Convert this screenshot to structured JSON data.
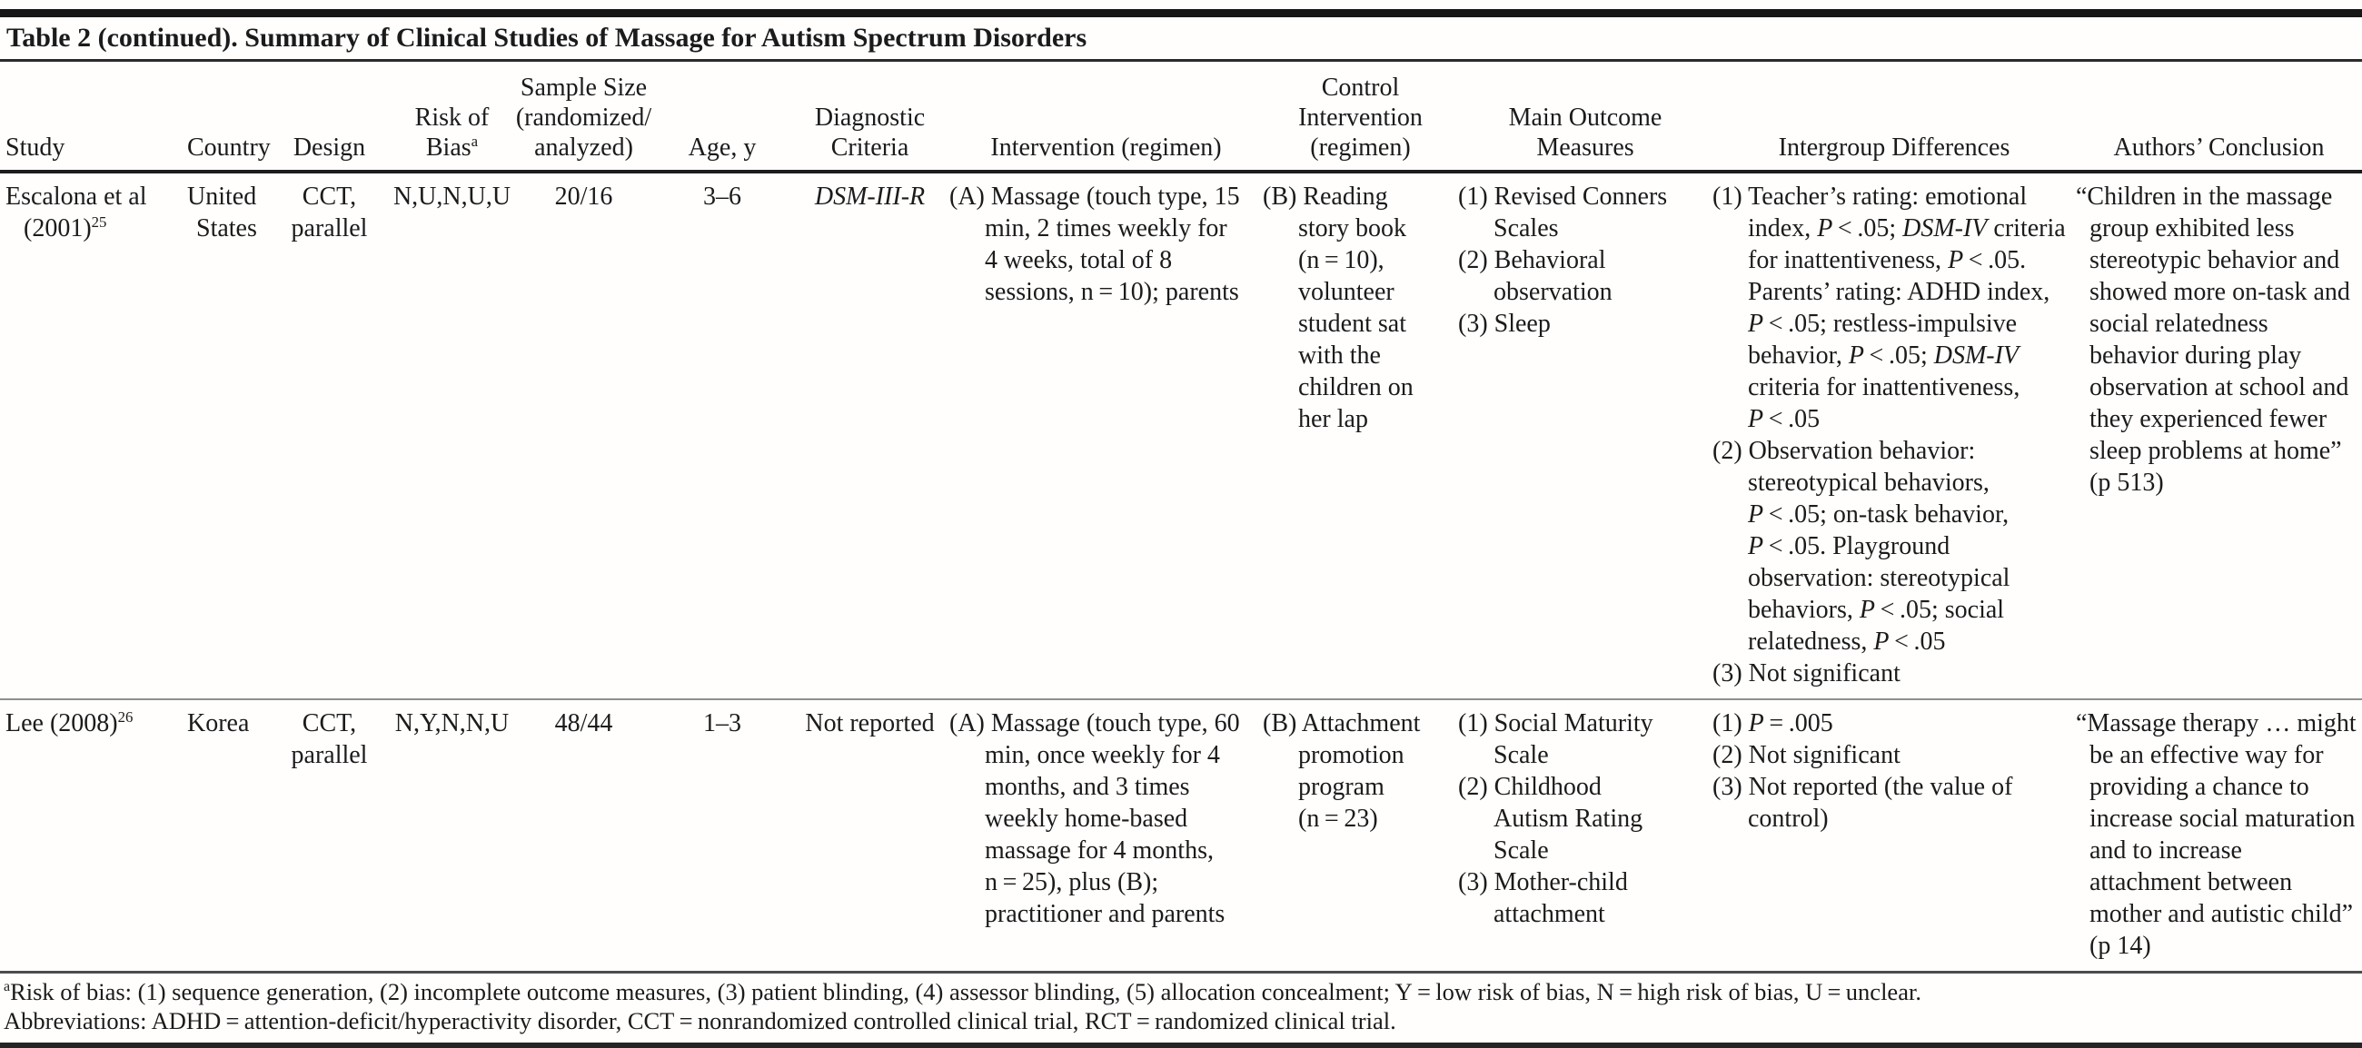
{
  "title": "Table 2 (continued). Summary of Clinical Studies of Massage for Autism Spectrum Disorders",
  "columns": [
    {
      "label": "Study"
    },
    {
      "label": "Country"
    },
    {
      "label": "Design"
    },
    {
      "label": [
        "Risk of",
        {
          "br": true
        },
        "Bias",
        {
          "t": "a",
          "sup": true
        }
      ]
    },
    {
      "label": [
        "Sample Size",
        {
          "br": true
        },
        "(randomized/",
        {
          "br": true
        },
        "analyzed)"
      ]
    },
    {
      "label": "Age, y"
    },
    {
      "label": [
        "Diagnostic",
        {
          "br": true
        },
        "Criteria"
      ]
    },
    {
      "label": "Intervention (regimen)"
    },
    {
      "label": [
        "Control",
        {
          "br": true
        },
        "Intervention",
        {
          "br": true
        },
        "(regimen)"
      ]
    },
    {
      "label": [
        "Main Outcome",
        {
          "br": true
        },
        "Measures"
      ]
    },
    {
      "label": "Intergroup Differences"
    },
    {
      "label": "Authors’ Conclusion"
    }
  ],
  "rows": [
    {
      "study": [
        "Escalona et al (2001)",
        {
          "t": "25",
          "sup": true
        }
      ],
      "country": "United States",
      "design": "CCT, parallel",
      "risk_of_bias": "N,U,N,U,U",
      "sample_size": "20/16",
      "age": "3–6",
      "diagnostic_criteria": [
        {
          "t": "DSM-III-R",
          "i": true
        }
      ],
      "intervention": [
        "(A) Massage (touch type, 15 min, 2 times weekly for 4 weeks, total of 8 sessions, n = 10); parents"
      ],
      "control": [
        "(B) Reading story book (n = 10), volunteer student sat with the children on her lap"
      ],
      "outcomes": [
        "(1) Revised Conners Scales",
        "(2) Behavioral observation",
        "(3) Sleep"
      ],
      "intergroup": [
        [
          "(1) Teacher’s rating: emotional index, ",
          {
            "t": "P",
            "i": true
          },
          " < .05; ",
          {
            "t": "DSM-IV",
            "i": true
          },
          " criteria for inattentiveness, ",
          {
            "t": "P",
            "i": true
          },
          " < .05. Parents’ rating: ADHD index, ",
          {
            "t": "P",
            "i": true
          },
          " < .05; restless-impulsive behavior, ",
          {
            "t": "P",
            "i": true
          },
          " < .05; ",
          {
            "t": "DSM-IV",
            "i": true
          },
          " criteria for inattentiveness, ",
          {
            "t": "P",
            "i": true
          },
          " < .05"
        ],
        [
          "(2) Observation behavior: stereotypical behaviors, ",
          {
            "t": "P",
            "i": true
          },
          " < .05; on-task behavior, ",
          {
            "t": "P",
            "i": true
          },
          " < .05. Playground observation: stereotypical behaviors, ",
          {
            "t": "P",
            "i": true
          },
          " < .05; social relatedness, ",
          {
            "t": "P",
            "i": true
          },
          " < .05"
        ],
        "(3) Not significant"
      ],
      "conclusion": "“Children in the massage group exhibited less stereotypic behavior and showed more on-task and social relatedness behavior during play observation at school and they experienced fewer sleep problems at home” (p 513)"
    },
    {
      "study": [
        "Lee (2008)",
        {
          "t": "26",
          "sup": true
        }
      ],
      "country": "Korea",
      "design": "CCT, parallel",
      "risk_of_bias": "N,Y,N,N,U",
      "sample_size": "48/44",
      "age": "1–3",
      "diagnostic_criteria": "Not reported",
      "intervention": [
        "(A) Massage (touch type, 60 min, once weekly for 4 months, and 3 times weekly home-based massage for 4 months, n = 25), plus (B); practitioner and parents"
      ],
      "control": [
        "(B) Attachment promotion program (n = 23)"
      ],
      "outcomes": [
        "(1) Social Maturity Scale",
        "(2) Childhood Autism Rating Scale",
        "(3) Mother-child attachment"
      ],
      "intergroup": [
        [
          "(1) ",
          {
            "t": "P",
            "i": true
          },
          " = .005"
        ],
        "(2) Not significant",
        "(3) Not reported (the value of control)"
      ],
      "conclusion": "“Massage therapy … might be an effective way for providing a chance to increase social maturation and to increase attachment between mother and autistic child” (p 14)"
    }
  ],
  "footnotes": [
    [
      {
        "t": "a",
        "sup": true
      },
      "Risk of bias: (1) sequence generation, (2) incomplete outcome measures, (3) patient blinding, (4) assessor blinding, (5) allocation concealment; Y = low risk of bias, N = high risk of bias, U = unclear."
    ],
    "Abbreviations: ADHD = attention-deficit/hyperactivity disorder, CCT = nonrandomized controlled clinical trial, RCT = randomized clinical trial."
  ]
}
